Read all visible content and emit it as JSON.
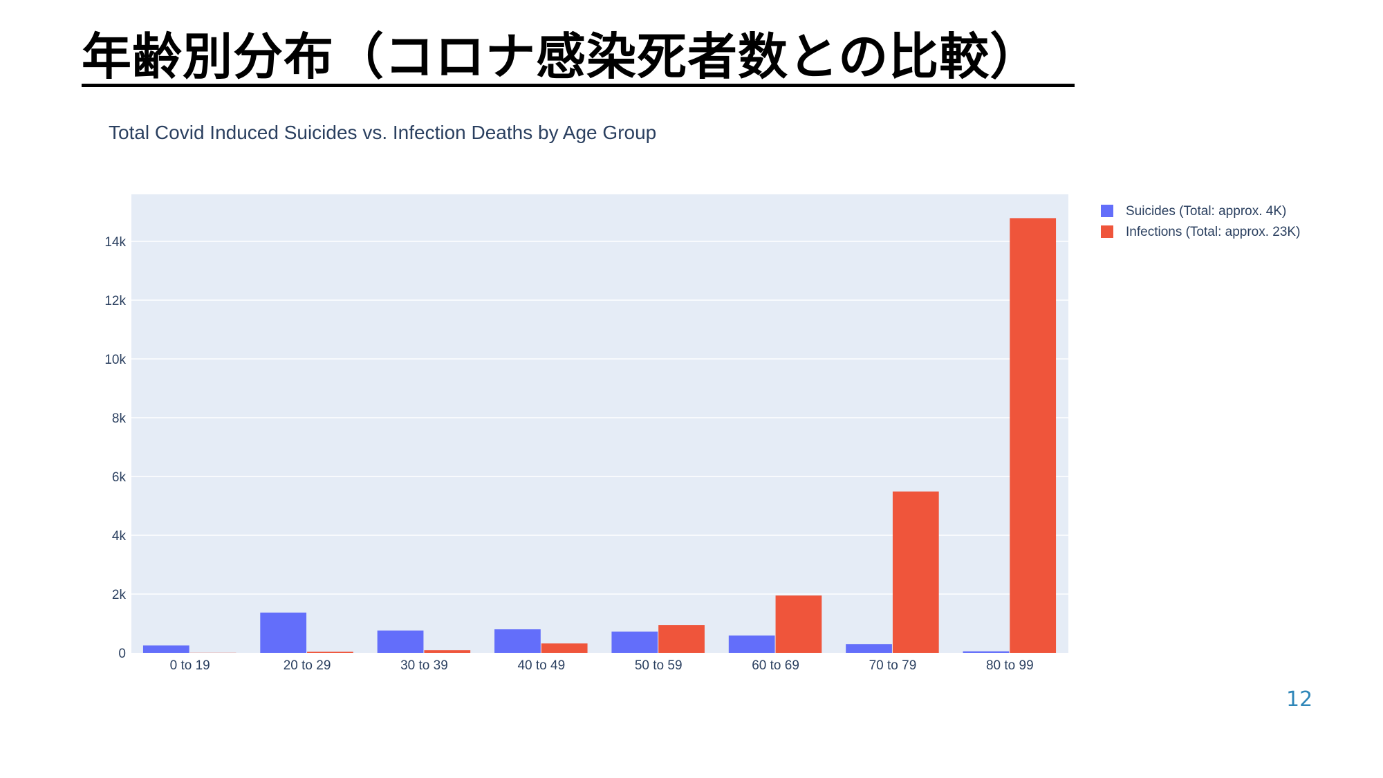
{
  "slide": {
    "title": "年齢別分布（コロナ感染死者数との比較）",
    "page_number": "12"
  },
  "chart_data": {
    "type": "bar",
    "title": "Total Covid Induced Suicides vs. Infection Deaths by Age Group",
    "xlabel": "",
    "ylabel": "",
    "categories": [
      "0 to 19",
      "20 to 29",
      "30 to 39",
      "40 to 49",
      "50 to 59",
      "60 to 69",
      "70 to 79",
      "80 to 99"
    ],
    "series": [
      {
        "name": "Suicides (Total: approx. 4K)",
        "color": "#636efa",
        "values": [
          250,
          1370,
          760,
          800,
          720,
          590,
          300,
          50
        ]
      },
      {
        "name": "Infections (Total: approx. 23K)",
        "color": "#ef553b",
        "values": [
          4,
          35,
          90,
          320,
          940,
          1950,
          5490,
          14790
        ]
      }
    ],
    "ylim": [
      0,
      15600
    ],
    "yticks": [
      0,
      2000,
      4000,
      6000,
      8000,
      10000,
      12000,
      14000
    ],
    "ytick_labels": [
      "0",
      "2k",
      "4k",
      "6k",
      "8k",
      "10k",
      "12k",
      "14k"
    ],
    "grid": true,
    "plot_background": "#e5ecf6",
    "legend_position": "top-right"
  }
}
